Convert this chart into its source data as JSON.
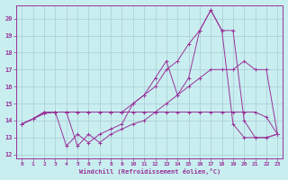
{
  "xlabel": "Windchill (Refroidissement éolien,°C)",
  "xlim": [
    -0.5,
    23.5
  ],
  "ylim": [
    11.8,
    20.8
  ],
  "yticks": [
    12,
    13,
    14,
    15,
    16,
    17,
    18,
    19,
    20
  ],
  "xticks": [
    0,
    1,
    2,
    3,
    4,
    5,
    6,
    7,
    8,
    9,
    10,
    11,
    12,
    13,
    14,
    15,
    16,
    17,
    18,
    19,
    20,
    21,
    22,
    23
  ],
  "bg_color": "#c8eef0",
  "grid_color": "#aaccd4",
  "line_color": "#993399",
  "lines": [
    {
      "x": [
        0,
        1,
        2,
        3,
        4,
        5,
        6,
        7,
        8,
        9,
        10,
        11,
        12,
        13,
        14,
        15,
        16,
        17,
        18,
        19,
        20,
        21,
        22,
        23
      ],
      "y": [
        13.8,
        14.1,
        14.4,
        14.5,
        14.5,
        14.5,
        14.5,
        14.5,
        14.5,
        14.5,
        14.5,
        14.5,
        14.5,
        14.5,
        14.5,
        14.5,
        14.5,
        14.5,
        14.5,
        14.5,
        14.5,
        14.5,
        14.2,
        13.2
      ]
    },
    {
      "x": [
        0,
        1,
        2,
        3,
        4,
        5,
        6,
        7,
        8,
        9,
        10,
        11,
        12,
        13,
        14,
        15,
        16,
        17,
        18,
        19,
        20,
        21,
        22,
        23
      ],
      "y": [
        13.8,
        14.1,
        14.5,
        14.5,
        14.5,
        12.5,
        13.2,
        12.7,
        13.2,
        13.5,
        13.8,
        14.0,
        14.5,
        15.0,
        15.5,
        16.0,
        16.5,
        17.0,
        17.0,
        17.0,
        17.5,
        17.0,
        17.0,
        13.2
      ]
    },
    {
      "x": [
        0,
        1,
        2,
        3,
        4,
        5,
        6,
        7,
        8,
        9,
        10,
        11,
        12,
        13,
        14,
        15,
        16,
        17,
        18,
        19,
        20,
        21,
        22,
        23
      ],
      "y": [
        13.8,
        14.1,
        14.5,
        14.5,
        14.5,
        14.5,
        14.5,
        14.5,
        14.5,
        14.5,
        15.0,
        15.5,
        16.0,
        17.0,
        17.5,
        18.5,
        19.3,
        20.5,
        19.3,
        19.3,
        14.0,
        13.0,
        13.0,
        13.2
      ]
    },
    {
      "x": [
        0,
        1,
        2,
        3,
        4,
        5,
        6,
        7,
        8,
        9,
        10,
        11,
        12,
        13,
        14,
        15,
        16,
        17,
        18,
        19,
        20,
        21,
        22,
        23
      ],
      "y": [
        13.8,
        14.1,
        14.5,
        14.5,
        12.5,
        13.2,
        12.7,
        13.2,
        13.5,
        13.8,
        15.0,
        15.5,
        16.5,
        17.5,
        15.5,
        16.5,
        19.3,
        20.5,
        19.3,
        13.8,
        13.0,
        13.0,
        13.0,
        13.2
      ]
    }
  ]
}
